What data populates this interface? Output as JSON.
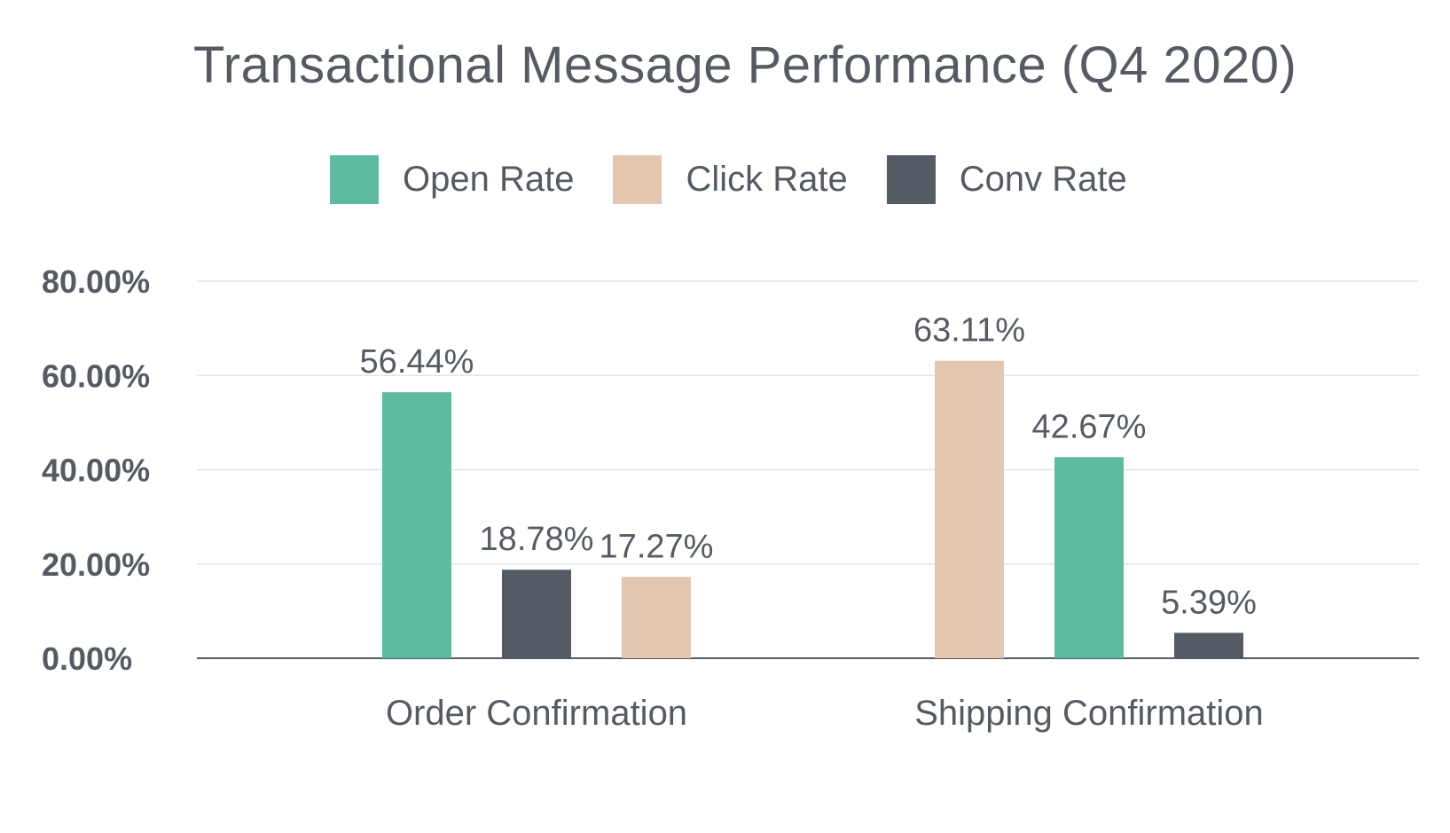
{
  "chart_data": {
    "type": "bar",
    "title": "Transactional Message Performance (Q4 2020)",
    "xlabel": "",
    "ylabel": "",
    "ylim": [
      0,
      80
    ],
    "y_ticks": [
      0,
      20,
      40,
      60,
      80
    ],
    "y_tick_labels": [
      "0.00%",
      "20.00%",
      "40.00%",
      "60.00%",
      "80.00%"
    ],
    "grid": true,
    "legend_position": "top",
    "legend": [
      {
        "name": "Open Rate",
        "color": "#5ebba2"
      },
      {
        "name": "Click Rate",
        "color": "#e3c6b0"
      },
      {
        "name": "Conv Rate",
        "color": "#555b64"
      }
    ],
    "categories": [
      "Order Confirmation",
      "Shipping Confirmation"
    ],
    "groups": [
      {
        "category": "Order Confirmation",
        "bars": [
          {
            "series": "Open Rate",
            "value": 56.44,
            "label": "56.44%"
          },
          {
            "series": "Conv Rate",
            "value": 18.78,
            "label": "18.78%"
          },
          {
            "series": "Click Rate",
            "value": 17.27,
            "label": "17.27%"
          }
        ]
      },
      {
        "category": "Shipping Confirmation",
        "bars": [
          {
            "series": "Click Rate",
            "value": 63.11,
            "label": "63.11%"
          },
          {
            "series": "Open Rate",
            "value": 42.67,
            "label": "42.67%"
          },
          {
            "series": "Conv Rate",
            "value": 5.39,
            "label": "5.39%"
          }
        ]
      }
    ]
  }
}
